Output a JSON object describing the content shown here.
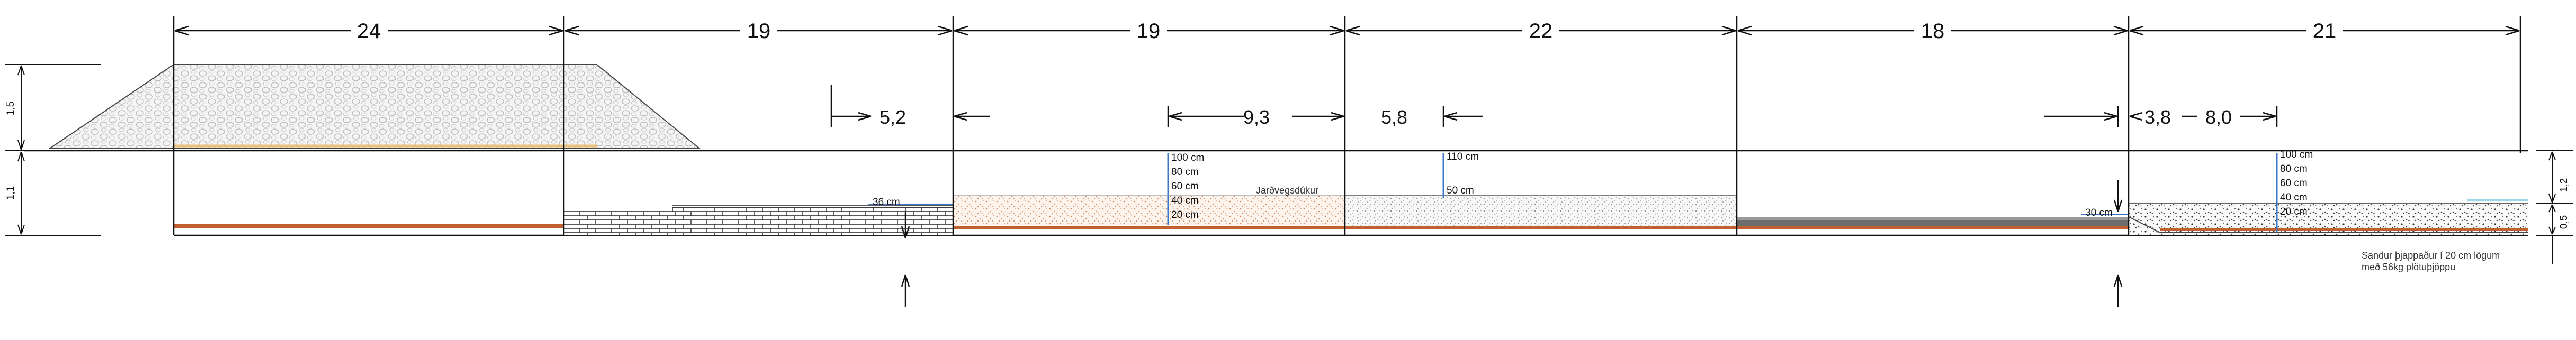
{
  "top_dimensions": [
    "24",
    "19",
    "19",
    "22",
    "18",
    "21"
  ],
  "mid_dimensions": [
    "5,2",
    "9,3",
    "5,8",
    "3,8",
    "8,0"
  ],
  "left_vertical_labels": [
    "1,5",
    "1,1"
  ],
  "right_vertical_labels": [
    "1,2",
    "0,5"
  ],
  "depth_labels": {
    "sec2": "36 cm",
    "sec3": [
      "100 cm",
      "80 cm",
      "60 cm",
      "40 cm",
      "20 cm"
    ],
    "sec4": [
      "110 cm",
      "50 cm"
    ],
    "sec5": "30 cm",
    "sec6": [
      "100 cm",
      "80 cm",
      "60 cm",
      "40 cm",
      "20 cm"
    ]
  },
  "geotextile_label": "Jarðvegsdúkur",
  "sand_note": [
    "Sandur þjappaður í 20 cm lögum",
    "með 56kg plötuþjöppu"
  ],
  "colors": {
    "line": "#111111",
    "orange": "#c0602e",
    "blue": "#3a78c4",
    "gravel": "#cfcfcf",
    "sand": "#d9a37c"
  }
}
